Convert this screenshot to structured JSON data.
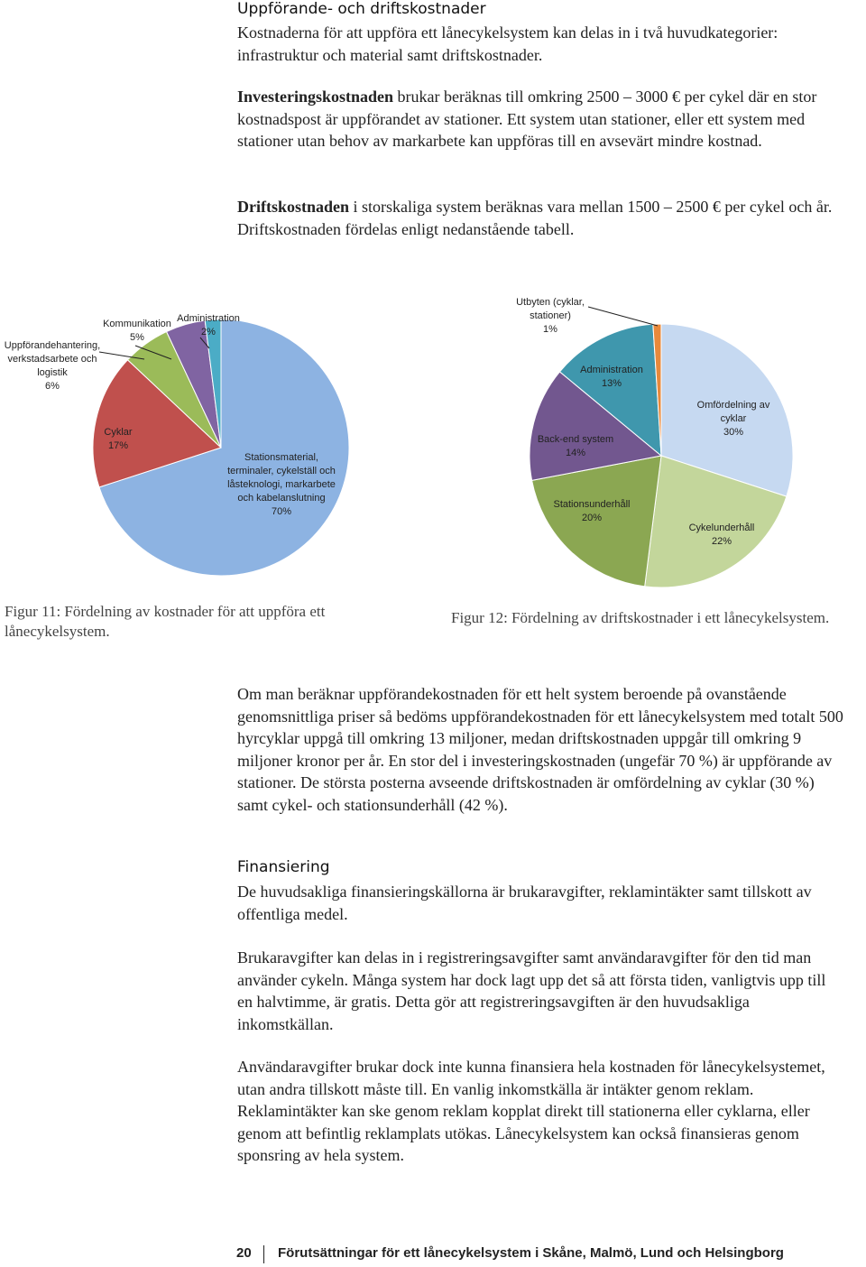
{
  "heading": "Uppförande- och driftskostnader",
  "intro": "Kostnaderna för att uppföra ett lånecykelsystem kan delas in i två huvudkategorier: infrastruktur och material samt driftskostnader.",
  "investment": {
    "bold": "Investeringskostnaden",
    "text": "brukar beräknas till omkring 2500 – 3000 € per cykel där en stor kostnadspost är uppförandet av stationer. Ett system utan stationer, eller ett system med stationer utan behov av markarbete kan uppföras till en avsevärt mindre kostnad."
  },
  "operation": {
    "bold": "Driftskostnaden",
    "text": "i storskaliga system beräknas vara mellan 1500 – 2500 € per cykel och år. Driftskostnaden fördelas enligt nedanstående tabell."
  },
  "chart_data": [
    {
      "type": "pie",
      "caption": "Figur 11: Fördelning av kostnader för att uppföra ett lånecykelsystem.",
      "categories": [
        "Stationsmaterial, terminaler, cykelställ och låsteknologi, markarbete och kabelanslutning",
        "Cyklar",
        "Uppförandehantering, verkstadsarbete och logistik",
        "Kommunikation",
        "Administration"
      ],
      "values": [
        70,
        17,
        6,
        5,
        2
      ],
      "value_labels": [
        "70%",
        "17%",
        "6%",
        "5%",
        "2%"
      ],
      "colors": [
        "#8db3e2",
        "#c0504d",
        "#9bbb59",
        "#8064a2",
        "#4bacc6"
      ]
    },
    {
      "type": "pie",
      "caption": "Figur 12: Fördelning av driftskostnader i ett lånecykelsystem.",
      "categories": [
        "Omfördelning av cyklar",
        "Cykelunderhåll",
        "Stationsunderhåll",
        "Back-end system",
        "Administration",
        "Utbyten (cyklar, stationer)"
      ],
      "values": [
        30,
        22,
        20,
        14,
        13,
        1
      ],
      "value_labels": [
        "30%",
        "22%",
        "20%",
        "14%",
        "13%",
        "1%"
      ],
      "colors": [
        "#c6d9f1",
        "#c3d69b",
        "#8ba752",
        "#72578f",
        "#3f97ad",
        "#e8893b"
      ]
    }
  ],
  "summary": "Om man beräknar uppförandekostnaden för ett helt system beroende på ovanstående genomsnittliga priser så bedöms uppförandekostnaden för ett lånecykelsystem med totalt 500 hyrcyklar uppgå till omkring 13 miljoner, medan driftskostnaden uppgår till omkring 9 miljoner kronor per år. En stor del i investeringskostnaden (ungefär 70 %) är uppförande av stationer. De största posterna avseende driftskostnaden är omfördelning av cyklar (30 %) samt cykel- och stationsunderhåll (42 %).",
  "financing": {
    "heading": "Finansiering",
    "paragraphs": [
      "De huvudsakliga finansieringskällorna är brukaravgifter, reklamintäkter samt tillskott av offentliga medel.",
      "Brukaravgifter kan delas in i registreringsavgifter samt användaravgifter för den tid man använder cykeln. Många system har dock lagt upp det så att första tiden, vanligtvis upp till en halvtimme, är gratis. Detta gör att registreringsavgiften är den huvudsakliga inkomstkällan.",
      "Användaravgifter brukar dock inte kunna finansiera hela kostnaden för lånecykelsystemet, utan andra tillskott måste till. En vanlig inkomstkälla är intäkter genom reklam. Reklamintäkter kan ske genom reklam kopplat direkt till stationerna eller cyklarna, eller genom att befintlig reklamplats utökas. Lånecykelsystem kan också finansieras genom sponsring av hela system."
    ]
  },
  "footer": {
    "page": "20",
    "title": "Förutsättningar för ett lånecykelsystem i Skåne, Malmö, Lund och Helsingborg"
  }
}
